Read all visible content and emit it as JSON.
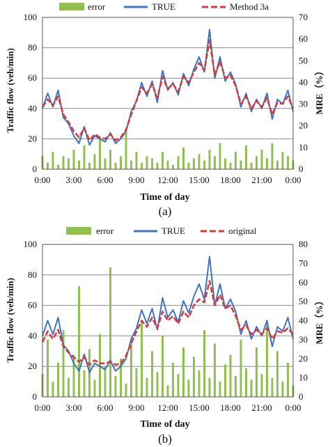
{
  "chart_data": [
    {
      "type": "line",
      "caption": "(a)",
      "legend": [
        "error",
        "TRUE",
        "Method 3a"
      ],
      "legend_position": "top",
      "xlabel": "Time of day",
      "ylabel": "Traffic flow (veh/min)",
      "ylabel2": "MRE（%）",
      "xticks": [
        "0:00",
        "3:00",
        "6:00",
        "9:00",
        "12:00",
        "15:00",
        "18:00",
        "21:00",
        "0:00"
      ],
      "ylim": [
        0,
        100
      ],
      "yticks": [
        "0",
        "20",
        "40",
        "60",
        "80",
        "100"
      ],
      "y2lim": [
        0,
        70
      ],
      "y2ticks": [
        "0",
        "10",
        "20",
        "30",
        "40",
        "50",
        "60",
        "70"
      ],
      "grid": true,
      "colors": {
        "error": "#92c050",
        "true": "#3f72c2",
        "pred": "#d23c3c"
      },
      "x_hours": [
        0,
        0.5,
        1,
        1.5,
        2,
        2.5,
        3,
        3.5,
        4,
        4.5,
        5,
        5.5,
        6,
        6.5,
        7,
        7.5,
        8,
        8.5,
        9,
        9.5,
        10,
        10.5,
        11,
        11.5,
        12,
        12.5,
        13,
        13.5,
        14,
        14.5,
        15,
        15.5,
        16,
        16.5,
        17,
        17.5,
        18,
        18.5,
        19,
        19.5,
        20,
        20.5,
        21,
        21.5,
        22,
        22.5,
        23,
        23.5,
        24
      ],
      "series": [
        {
          "name": "TRUE",
          "values": [
            40,
            50,
            41,
            52,
            34,
            30,
            22,
            17,
            28,
            16,
            22,
            20,
            18,
            24,
            17,
            20,
            25,
            38,
            45,
            57,
            48,
            58,
            44,
            65,
            52,
            57,
            49,
            63,
            55,
            66,
            74,
            64,
            92,
            60,
            74,
            58,
            64,
            56,
            41,
            50,
            38,
            46,
            40,
            50,
            33,
            46,
            43,
            52,
            38
          ]
        },
        {
          "name": "Method 3a",
          "values": [
            41,
            46,
            42,
            48,
            36,
            31,
            25,
            21,
            27,
            19,
            23,
            21,
            20,
            23,
            19,
            21,
            26,
            36,
            45,
            54,
            50,
            56,
            47,
            61,
            53,
            56,
            51,
            61,
            57,
            64,
            70,
            65,
            85,
            62,
            71,
            60,
            62,
            55,
            43,
            48,
            40,
            45,
            41,
            47,
            36,
            44,
            43,
            48,
            40
          ]
        },
        {
          "name": "error",
          "axis": "right",
          "values": [
            6,
            3,
            8,
            2,
            6,
            5,
            9,
            4,
            11,
            3,
            7,
            14,
            5,
            9,
            3,
            6,
            18,
            4,
            8,
            3,
            6,
            5,
            3,
            8,
            4,
            2,
            6,
            10,
            3,
            5,
            7,
            4,
            9,
            6,
            12,
            5,
            3,
            8,
            4,
            11,
            3,
            6,
            9,
            5,
            12,
            4,
            8,
            6,
            4
          ]
        }
      ]
    },
    {
      "type": "line",
      "caption": "(b)",
      "legend": [
        "error",
        "TRUE",
        "original"
      ],
      "legend_position": "top",
      "xlabel": "Time of day",
      "ylabel": "Traffic flow (veh/min)",
      "ylabel2": "MRE（%）",
      "xticks": [
        "0:00",
        "3:00",
        "6:00",
        "9:00",
        "12:00",
        "15:00",
        "18:00",
        "21:00",
        "0:00"
      ],
      "ylim": [
        0,
        100
      ],
      "yticks": [
        "0",
        "20",
        "40",
        "60",
        "80",
        "100"
      ],
      "y2lim": [
        0,
        80
      ],
      "y2ticks": [
        "0",
        "10",
        "20",
        "30",
        "40",
        "50",
        "60",
        "70",
        "80"
      ],
      "grid": true,
      "colors": {
        "error": "#92c050",
        "true": "#3f72c2",
        "pred": "#d23c3c"
      },
      "x_hours": [
        0,
        0.5,
        1,
        1.5,
        2,
        2.5,
        3,
        3.5,
        4,
        4.5,
        5,
        5.5,
        6,
        6.5,
        7,
        7.5,
        8,
        8.5,
        9,
        9.5,
        10,
        10.5,
        11,
        11.5,
        12,
        12.5,
        13,
        13.5,
        14,
        14.5,
        15,
        15.5,
        16,
        16.5,
        17,
        17.5,
        18,
        18.5,
        19,
        19.5,
        20,
        20.5,
        21,
        21.5,
        22,
        22.5,
        23,
        23.5,
        24
      ],
      "series": [
        {
          "name": "TRUE",
          "values": [
            40,
            50,
            41,
            52,
            34,
            30,
            22,
            17,
            28,
            16,
            22,
            20,
            18,
            24,
            17,
            20,
            25,
            38,
            45,
            57,
            48,
            58,
            44,
            65,
            52,
            57,
            49,
            63,
            55,
            66,
            74,
            64,
            92,
            60,
            74,
            58,
            64,
            56,
            41,
            50,
            38,
            46,
            40,
            50,
            33,
            46,
            43,
            52,
            38
          ]
        },
        {
          "name": "original",
          "values": [
            36,
            43,
            38,
            44,
            33,
            29,
            26,
            23,
            26,
            21,
            24,
            22,
            22,
            23,
            21,
            22,
            27,
            35,
            43,
            50,
            46,
            52,
            45,
            56,
            50,
            53,
            48,
            56,
            52,
            60,
            64,
            62,
            76,
            60,
            67,
            58,
            60,
            53,
            44,
            47,
            41,
            44,
            41,
            45,
            38,
            43,
            42,
            45,
            41
          ]
        },
        {
          "name": "error",
          "axis": "right",
          "values": [
            12,
            30,
            8,
            18,
            35,
            10,
            22,
            58,
            14,
            25,
            9,
            33,
            16,
            68,
            11,
            20,
            7,
            28,
            15,
            40,
            10,
            24,
            13,
            32,
            6,
            18,
            12,
            26,
            9,
            21,
            14,
            35,
            10,
            28,
            8,
            17,
            22,
            11,
            30,
            15,
            9,
            26,
            12,
            38,
            10,
            24,
            8,
            18,
            6
          ]
        }
      ]
    }
  ]
}
